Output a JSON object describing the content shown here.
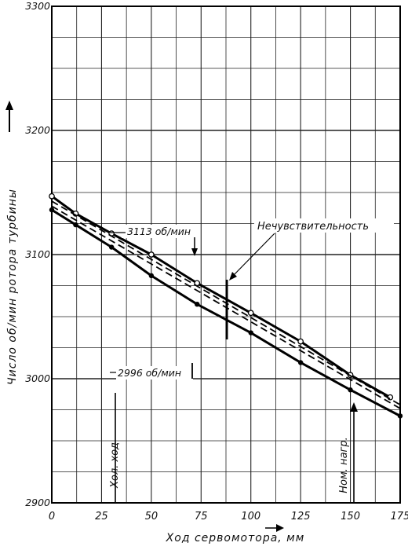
{
  "chart_data": {
    "type": "line",
    "title": "",
    "xlabel": "Ход сервомотора, мм",
    "ylabel": "Число об/мин ротора турбины",
    "xlim": [
      0,
      175
    ],
    "ylim": [
      2900,
      3300
    ],
    "x_tick_labels": [
      "0",
      "25",
      "50",
      "75",
      "100",
      "125",
      "150",
      "175"
    ],
    "y_tick_labels": [
      "2900",
      "3000",
      "3100",
      "3200",
      "3300"
    ],
    "grid": true,
    "series": [
      {
        "x": [
          0,
          12,
          30,
          50,
          73,
          100,
          125,
          150,
          170
        ],
        "y": [
          3147,
          3133,
          3117,
          3100,
          3077,
          3053,
          3030,
          3003,
          2985
        ],
        "marker": "open-circle"
      },
      {
        "x": [
          0,
          175
        ],
        "y": [
          3143,
          2979
        ],
        "marker": "none",
        "dashed": true
      },
      {
        "x": [
          0,
          175
        ],
        "y": [
          3139,
          2976
        ],
        "marker": "none",
        "dashed": true
      },
      {
        "x": [
          0,
          12,
          30,
          50,
          73,
          100,
          125,
          150,
          175
        ],
        "y": [
          3136,
          3124,
          3106,
          3083,
          3060,
          3037,
          3013,
          2991,
          2970
        ],
        "marker": "filled-dot"
      }
    ],
    "annotations": [
      {
        "text": "3113 об/мин",
        "x": 62,
        "y": 3113
      },
      {
        "text": "2996 об/мин",
        "x": 62,
        "y": 3007
      },
      {
        "text": "Нечувствительность",
        "x": 88,
        "y": 3130
      },
      {
        "text": "Хол. ход",
        "x": 30,
        "y": 2960
      },
      {
        "text": "Ном. нагр.",
        "x": 150,
        "y": 2960
      }
    ]
  }
}
